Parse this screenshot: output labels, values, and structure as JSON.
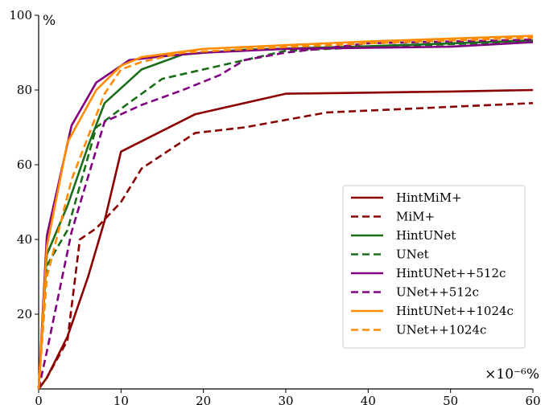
{
  "chart_data": {
    "type": "line",
    "title": "",
    "xlabel": "",
    "ylabel": "",
    "x_unit_label": "×10⁻⁶%",
    "y_unit_label": "%",
    "xlim": [
      0,
      60
    ],
    "ylim": [
      0,
      100
    ],
    "x_ticks": [
      0,
      10,
      20,
      30,
      40,
      50,
      60
    ],
    "y_ticks": [
      20,
      40,
      60,
      80,
      100
    ],
    "grid": false,
    "legend_position": "lower-right",
    "series": [
      {
        "name": "HintMiM+",
        "color": "#8b0000",
        "dash": "solid",
        "x": [
          0,
          1.0,
          3.5,
          6.0,
          8.0,
          10.0,
          19.0,
          30.0,
          40.0,
          50.0,
          60.0
        ],
        "y": [
          0,
          3,
          14,
          30,
          45,
          63.5,
          73.5,
          79,
          79.3,
          79.6,
          80
        ]
      },
      {
        "name": "MiM+",
        "color": "#8b0000",
        "dash": "dashed",
        "x": [
          0,
          1.0,
          3.5,
          5.0,
          7.0,
          10.0,
          12.5,
          19.0,
          25.0,
          35.0,
          45.0,
          60.0
        ],
        "y": [
          0,
          3,
          13,
          40,
          43,
          50,
          59,
          68.5,
          70,
          74,
          75,
          76.5
        ]
      },
      {
        "name": "HintUNet",
        "color": "#1a6e1a",
        "dash": "solid",
        "x": [
          0,
          1.0,
          3.5,
          6.0,
          8.0,
          12.5,
          17.5,
          25.0,
          40.0,
          60.0
        ],
        "y": [
          0,
          36,
          49,
          65,
          76.5,
          85.5,
          89.5,
          90.8,
          91.7,
          93.3
        ]
      },
      {
        "name": "UNet",
        "color": "#1a6e1a",
        "dash": "dashed",
        "x": [
          0,
          1.0,
          3.5,
          7.0,
          10.0,
          15.0,
          20.0,
          30.0,
          40.0,
          60.0
        ],
        "y": [
          0,
          33,
          42.5,
          70,
          75,
          83,
          85.5,
          90.5,
          91.5,
          93
        ]
      },
      {
        "name": "HintUNet++512c",
        "color": "#800080",
        "dash": "solid",
        "x": [
          0,
          1.0,
          4.0,
          7.0,
          11.0,
          15.0,
          20.0,
          30.0,
          40.0,
          50.0,
          60.0
        ],
        "y": [
          0,
          41,
          70.5,
          82,
          88,
          89,
          90,
          91,
          91.3,
          91.6,
          92.8
        ]
      },
      {
        "name": "UNet++512c",
        "color": "#800080",
        "dash": "dashed",
        "x": [
          0,
          1.0,
          4.0,
          8.0,
          12.5,
          17.5,
          22.0,
          25.0,
          30.0,
          40.0,
          60.0
        ],
        "y": [
          0,
          10,
          42,
          71.5,
          76,
          80,
          84,
          88,
          90,
          92.5,
          93.5
        ]
      },
      {
        "name": "HintUNet++1024c",
        "color": "#ff8c00",
        "dash": "solid",
        "x": [
          0,
          1.0,
          3.5,
          7.0,
          10.0,
          12.5,
          20.0,
          30.0,
          40.0,
          60.0
        ],
        "y": [
          0,
          38,
          66,
          80,
          86.5,
          88.8,
          91,
          92,
          93,
          94.5
        ]
      },
      {
        "name": "UNet++1024c",
        "color": "#ff8c00",
        "dash": "dashed",
        "x": [
          0,
          1.0,
          4.0,
          8.0,
          10.0,
          12.5,
          17.5,
          30.0,
          40.0,
          60.0
        ],
        "y": [
          0,
          30,
          56,
          79,
          85.5,
          87.5,
          90,
          91.5,
          92.5,
          94
        ]
      }
    ]
  }
}
